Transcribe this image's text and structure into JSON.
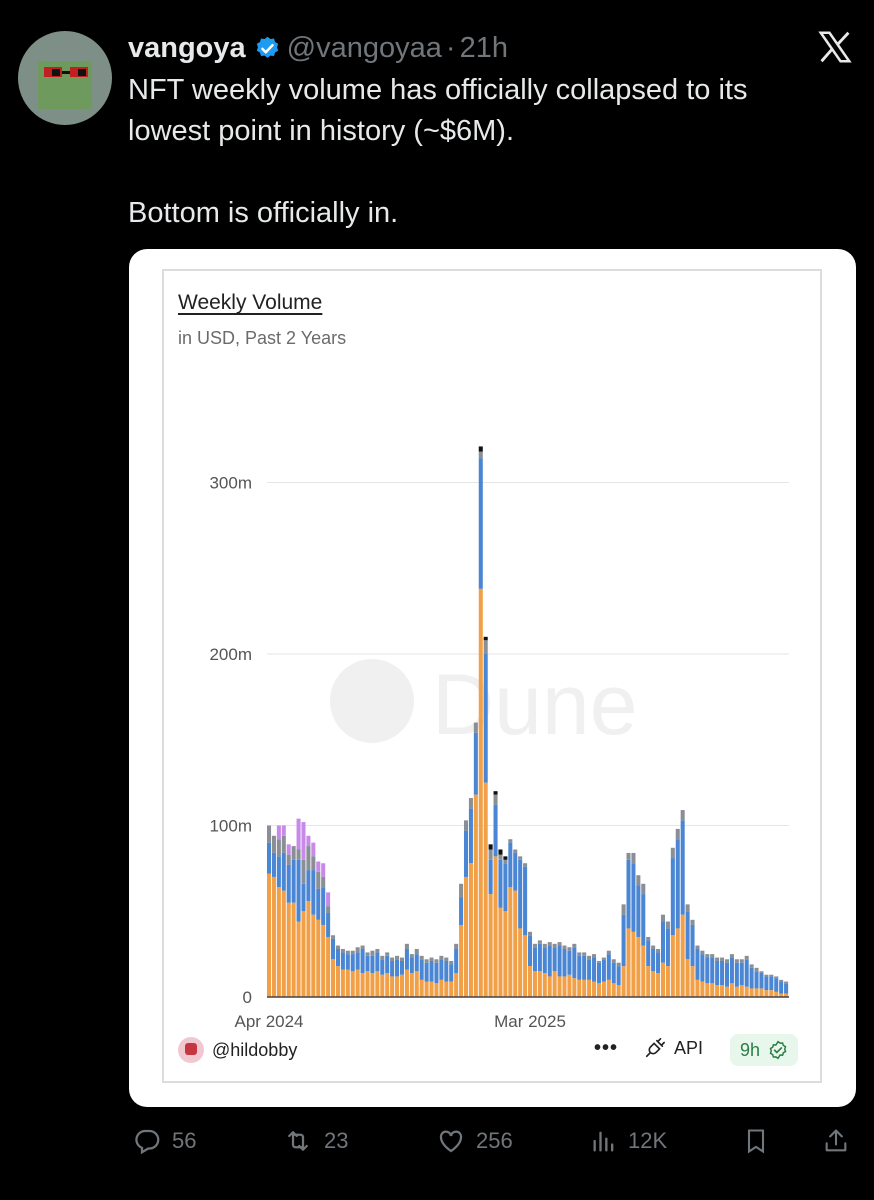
{
  "tweet": {
    "author_name": "vangoya",
    "handle": "@vangoyaa",
    "separator": "·",
    "time": "21h",
    "text_line1": "NFT weekly volume has officially collapsed to its",
    "text_line2": "lowest point in history (~$6M).",
    "text_line3": "Bottom is officially in."
  },
  "card": {
    "title": "Weekly Volume",
    "subtitle": "in USD, Past 2 Years",
    "watermark": "Dune",
    "author": "@hildobby",
    "menu_dots": "•••",
    "api_label": "API",
    "refresh_label": "9h"
  },
  "actions": {
    "replies": "56",
    "reposts": "23",
    "likes": "256",
    "views": "12K"
  },
  "icons": {
    "verified": "verified-badge-icon",
    "x_logo": "x-logo-icon",
    "reply": "reply-icon",
    "repost": "repost-icon",
    "like": "heart-icon",
    "views": "views-icon",
    "bookmark": "bookmark-icon",
    "share": "share-icon"
  },
  "colors": {
    "background": "#000000",
    "text": "#e7e9ea",
    "muted": "#71767b",
    "verified": "#1d9bf0",
    "series_orange": "#f2a048",
    "series_blue": "#4a86d4",
    "series_gray": "#8a8f96",
    "series_purple": "#c88ae8",
    "series_black": "#111111"
  },
  "chart_data": {
    "type": "bar",
    "stacked": true,
    "title": "Weekly Volume",
    "subtitle": "in USD, Past 2 Years",
    "unit": "USD millions",
    "ylim": [
      0,
      330
    ],
    "yticks": [
      {
        "value": 0,
        "label": "0"
      },
      {
        "value": 100,
        "label": "100m"
      },
      {
        "value": 200,
        "label": "200m"
      },
      {
        "value": 300,
        "label": "300m"
      }
    ],
    "xticks": [
      {
        "index": 0,
        "label": "Apr 2024"
      },
      {
        "index": 53,
        "label": "Mar 2025"
      }
    ],
    "grid": true,
    "series": [
      {
        "color": "#f2a048",
        "values": [
          72,
          70,
          64,
          62,
          55,
          55,
          44,
          50,
          56,
          48,
          45,
          42,
          35,
          22,
          18,
          16,
          16,
          15,
          16,
          14,
          15,
          14,
          15,
          13,
          14,
          12,
          12,
          13,
          16,
          14,
          15,
          10,
          9,
          9,
          8,
          10,
          9,
          9,
          14,
          42,
          70,
          78,
          118,
          238,
          125,
          60,
          82,
          52,
          50,
          64,
          62,
          40,
          36,
          18,
          15,
          15,
          14,
          12,
          15,
          12,
          12,
          13,
          11,
          10,
          10,
          10,
          9,
          8,
          9,
          10,
          8,
          7,
          18,
          40,
          38,
          35,
          30,
          18,
          15,
          14,
          20,
          18,
          36,
          40,
          48,
          22,
          18,
          10,
          9,
          8,
          8,
          7,
          7,
          6,
          8,
          6,
          7,
          6,
          5,
          5,
          5,
          4,
          4,
          3,
          2,
          2
        ]
      },
      {
        "color": "#4a86d4",
        "values": [
          18,
          14,
          18,
          22,
          22,
          25,
          36,
          16,
          18,
          26,
          18,
          22,
          14,
          12,
          10,
          10,
          9,
          10,
          10,
          14,
          9,
          10,
          11,
          9,
          10,
          9,
          10,
          8,
          12,
          9,
          10,
          12,
          11,
          12,
          12,
          12,
          12,
          10,
          14,
          16,
          27,
          32,
          36,
          76,
          75,
          20,
          30,
          28,
          28,
          26,
          22,
          40,
          40,
          18,
          14,
          16,
          15,
          18,
          14,
          18,
          16,
          14,
          18,
          14,
          14,
          12,
          14,
          12,
          13,
          15,
          12,
          11,
          30,
          40,
          40,
          30,
          30,
          15,
          13,
          12,
          24,
          22,
          45,
          52,
          55,
          28,
          24,
          18,
          16,
          15,
          15,
          14,
          14,
          14,
          15,
          14,
          13,
          16,
          12,
          10,
          9,
          8,
          8,
          8,
          7,
          6
        ]
      },
      {
        "color": "#8a8f96",
        "values": [
          10,
          10,
          10,
          10,
          6,
          8,
          6,
          14,
          14,
          8,
          10,
          6,
          4,
          2,
          2,
          2,
          2,
          2,
          3,
          2,
          2,
          3,
          2,
          2,
          2,
          2,
          2,
          2,
          3,
          2,
          3,
          2,
          2,
          2,
          2,
          2,
          2,
          2,
          3,
          8,
          6,
          6,
          6,
          4,
          8,
          6,
          6,
          3,
          2,
          2,
          2,
          2,
          2,
          2,
          2,
          2,
          2,
          2,
          2,
          2,
          2,
          2,
          2,
          2,
          2,
          2,
          2,
          1,
          1,
          2,
          2,
          2,
          6,
          4,
          6,
          6,
          6,
          2,
          2,
          2,
          4,
          4,
          6,
          6,
          6,
          4,
          3,
          2,
          2,
          2,
          2,
          2,
          2,
          2,
          2,
          2,
          2,
          2,
          2,
          2,
          1,
          1,
          1,
          1,
          1,
          1
        ]
      },
      {
        "color": "#c88ae8",
        "values": [
          0,
          0,
          8,
          6,
          6,
          0,
          18,
          22,
          6,
          8,
          6,
          8,
          8,
          0,
          0,
          0,
          0,
          0,
          0,
          0,
          0,
          0,
          0,
          0,
          0,
          0,
          0,
          0,
          0,
          0,
          0,
          0,
          0,
          0,
          0,
          0,
          0,
          0,
          0,
          0,
          0,
          0,
          0,
          0,
          0,
          0,
          0,
          0,
          0,
          0,
          0,
          0,
          0,
          0,
          0,
          0,
          0,
          0,
          0,
          0,
          0,
          0,
          0,
          0,
          0,
          0,
          0,
          0,
          0,
          0,
          0,
          0,
          0,
          0,
          0,
          0,
          0,
          0,
          0,
          0,
          0,
          0,
          0,
          0,
          0,
          0,
          0,
          0,
          0,
          0,
          0,
          0,
          0,
          0,
          0,
          0,
          0,
          0,
          0,
          0,
          0,
          0,
          0,
          0,
          0,
          0
        ]
      },
      {
        "color": "#111111",
        "values": [
          0,
          0,
          0,
          0,
          0,
          0,
          0,
          0,
          0,
          0,
          0,
          0,
          0,
          0,
          0,
          0,
          0,
          0,
          0,
          0,
          0,
          0,
          0,
          0,
          0,
          0,
          0,
          0,
          0,
          0,
          0,
          0,
          0,
          0,
          0,
          0,
          0,
          0,
          0,
          0,
          0,
          0,
          0,
          3,
          2,
          3,
          2,
          3,
          2,
          0,
          0,
          0,
          0,
          0,
          0,
          0,
          0,
          0,
          0,
          0,
          0,
          0,
          0,
          0,
          0,
          0,
          0,
          0,
          0,
          0,
          0,
          0,
          0,
          0,
          0,
          0,
          0,
          0,
          0,
          0,
          0,
          0,
          0,
          0,
          0,
          0,
          0,
          0,
          0,
          0,
          0,
          0,
          0,
          0,
          0,
          0,
          0,
          0,
          0,
          0,
          0,
          0,
          0,
          0,
          0,
          0
        ]
      }
    ]
  }
}
